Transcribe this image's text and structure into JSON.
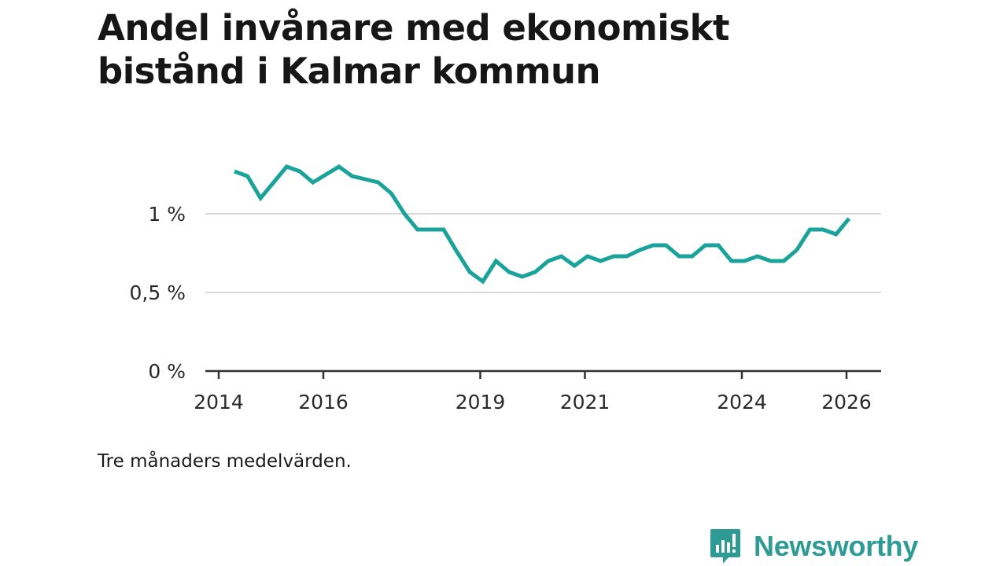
{
  "title": {
    "line1": "Andel invånare med ekonomiskt",
    "line2": "bistånd i Kalmar kommun"
  },
  "note": "Tre månaders medelvärden.",
  "brand": {
    "name": "Newsworthy",
    "icon": "newsworthy-logo-icon",
    "color": "#2e9b94"
  },
  "chart_data": {
    "type": "line",
    "title": "Andel invånare med ekonomiskt bistånd i Kalmar kommun",
    "xlabel": "",
    "ylabel": "",
    "ylim": [
      0,
      1.3
    ],
    "xlim": [
      2013.9,
      2027.0
    ],
    "y_ticks": [
      {
        "value": 0,
        "label": "0 %"
      },
      {
        "value": 0.5,
        "label": "0,5 %"
      },
      {
        "value": 1.0,
        "label": "1 %"
      }
    ],
    "x_ticks": [
      {
        "value": 2014,
        "label": "2014"
      },
      {
        "value": 2016,
        "label": "2016"
      },
      {
        "value": 2019,
        "label": "2019"
      },
      {
        "value": 2021,
        "label": "2021"
      },
      {
        "value": 2024,
        "label": "2024"
      },
      {
        "value": 2026,
        "label": "2026"
      }
    ],
    "grid": true,
    "line_color": "#1aa39a",
    "series": [
      {
        "name": "Andel invånare med ekonomiskt bistånd",
        "x": [
          2014.3,
          2014.55,
          2014.8,
          2015.05,
          2015.3,
          2015.55,
          2015.8,
          2016.05,
          2016.3,
          2016.55,
          2016.8,
          2017.05,
          2017.3,
          2017.55,
          2017.8,
          2018.05,
          2018.3,
          2018.55,
          2018.8,
          2019.05,
          2019.3,
          2019.55,
          2019.8,
          2020.05,
          2020.3,
          2020.55,
          2020.8,
          2021.05,
          2021.3,
          2021.55,
          2021.8,
          2022.05,
          2022.3,
          2022.55,
          2022.8,
          2023.05,
          2023.3,
          2023.55,
          2023.8,
          2024.05,
          2024.3,
          2024.55,
          2024.8,
          2025.05,
          2025.3,
          2025.55,
          2025.8,
          2026.05
        ],
        "values": [
          1.27,
          1.24,
          1.1,
          1.2,
          1.3,
          1.27,
          1.2,
          1.25,
          1.3,
          1.24,
          1.22,
          1.2,
          1.13,
          1.0,
          0.9,
          0.9,
          0.9,
          0.76,
          0.63,
          0.57,
          0.7,
          0.63,
          0.6,
          0.63,
          0.7,
          0.73,
          0.67,
          0.73,
          0.7,
          0.73,
          0.73,
          0.77,
          0.8,
          0.8,
          0.73,
          0.73,
          0.8,
          0.8,
          0.7,
          0.7,
          0.73,
          0.7,
          0.7,
          0.77,
          0.9,
          0.9,
          0.87,
          0.97
        ]
      }
    ]
  }
}
